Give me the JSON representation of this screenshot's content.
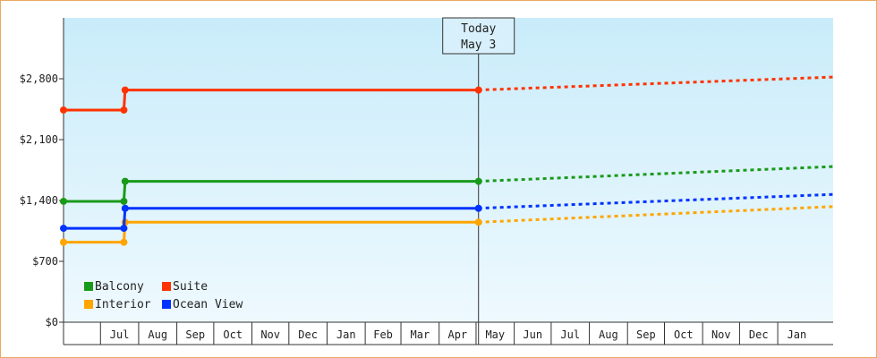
{
  "chart_data": {
    "type": "line",
    "title": "",
    "xlabel": "",
    "ylabel": "",
    "ylim": [
      0,
      3500
    ],
    "y_ticks": [
      "$0",
      "$700",
      "$1,400",
      "$2,100",
      "$2,800"
    ],
    "y_tick_values": [
      0,
      700,
      1400,
      2100,
      2800
    ],
    "x_range": [
      "2023-06-01",
      "2025-02-15"
    ],
    "month_labels": [
      {
        "label": "Jul",
        "start": "2023-07-01",
        "end": "2023-08-01"
      },
      {
        "label": "Aug",
        "start": "2023-08-01",
        "end": "2023-09-01"
      },
      {
        "label": "Sep",
        "start": "2023-09-01",
        "end": "2023-10-01"
      },
      {
        "label": "Oct",
        "start": "2023-10-01",
        "end": "2023-11-01"
      },
      {
        "label": "Nov",
        "start": "2023-11-01",
        "end": "2023-12-01"
      },
      {
        "label": "Dec",
        "start": "2023-12-01",
        "end": "2024-01-01"
      },
      {
        "label": "Jan",
        "start": "2024-01-01",
        "end": "2024-02-01"
      },
      {
        "label": "Feb",
        "start": "2024-02-01",
        "end": "2024-03-01"
      },
      {
        "label": "Mar",
        "start": "2024-03-01",
        "end": "2024-04-01"
      },
      {
        "label": "Apr",
        "start": "2024-04-01",
        "end": "2024-05-01"
      },
      {
        "label": "May",
        "start": "2024-05-01",
        "end": "2024-06-01"
      },
      {
        "label": "Jun",
        "start": "2024-06-01",
        "end": "2024-07-01"
      },
      {
        "label": "Jul",
        "start": "2024-07-01",
        "end": "2024-08-01"
      },
      {
        "label": "Aug",
        "start": "2024-08-01",
        "end": "2024-09-01"
      },
      {
        "label": "Sep",
        "start": "2024-09-01",
        "end": "2024-10-01"
      },
      {
        "label": "Oct",
        "start": "2024-10-01",
        "end": "2024-11-01"
      },
      {
        "label": "Nov",
        "start": "2024-11-01",
        "end": "2024-12-01"
      },
      {
        "label": "Dec",
        "start": "2024-12-01",
        "end": "2025-01-01"
      },
      {
        "label": "Jan",
        "start": "2025-01-01",
        "end": "2025-02-01"
      }
    ],
    "today": {
      "line1": "Today",
      "line2": "May 3",
      "date": "2024-05-03"
    },
    "grid": false,
    "legend_position": "bottom-left",
    "series": [
      {
        "name": "Balcony",
        "color": "#1a9a1a",
        "points": [
          [
            "2023-06-01",
            1390
          ],
          [
            "2023-07-20",
            1390
          ],
          [
            "2023-07-21",
            1620
          ],
          [
            "2024-05-03",
            1620
          ]
        ],
        "forecast": [
          [
            "2024-05-03",
            1620
          ],
          [
            "2025-02-15",
            1790
          ]
        ]
      },
      {
        "name": "Suite",
        "color": "#ff3300",
        "points": [
          [
            "2023-06-01",
            2440
          ],
          [
            "2023-07-20",
            2440
          ],
          [
            "2023-07-21",
            2670
          ],
          [
            "2024-05-03",
            2670
          ]
        ],
        "forecast": [
          [
            "2024-05-03",
            2670
          ],
          [
            "2025-02-15",
            2820
          ]
        ]
      },
      {
        "name": "Interior",
        "color": "#ffa500",
        "points": [
          [
            "2023-06-01",
            920
          ],
          [
            "2023-07-20",
            920
          ],
          [
            "2023-07-21",
            1150
          ],
          [
            "2024-05-03",
            1150
          ]
        ],
        "forecast": [
          [
            "2024-05-03",
            1150
          ],
          [
            "2025-02-15",
            1330
          ]
        ]
      },
      {
        "name": "Ocean View",
        "color": "#0033ff",
        "points": [
          [
            "2023-06-01",
            1080
          ],
          [
            "2023-07-20",
            1080
          ],
          [
            "2023-07-21",
            1310
          ],
          [
            "2024-05-03",
            1310
          ]
        ],
        "forecast": [
          [
            "2024-05-03",
            1310
          ],
          [
            "2025-02-15",
            1470
          ]
        ]
      }
    ]
  }
}
